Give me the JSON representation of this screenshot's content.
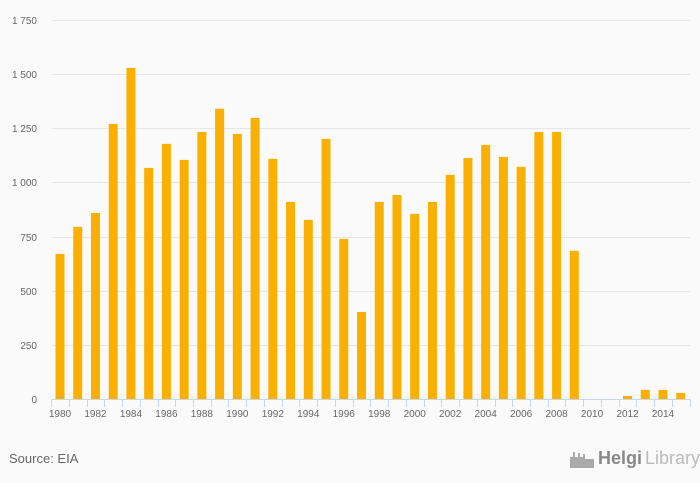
{
  "chart_data": {
    "type": "bar",
    "title": "",
    "xlabel": "",
    "ylabel": "",
    "ylim": [
      0,
      1750
    ],
    "yticks": [
      0,
      250,
      500,
      750,
      1000,
      1250,
      1500,
      1750
    ],
    "ytick_labels": [
      "0",
      "250",
      "500",
      "750",
      "1 000",
      "1 250",
      "1 500",
      "1 750"
    ],
    "categories": [
      "1980",
      "1981",
      "1982",
      "1983",
      "1984",
      "1985",
      "1986",
      "1987",
      "1988",
      "1989",
      "1990",
      "1991",
      "1992",
      "1993",
      "1994",
      "1995",
      "1996",
      "1997",
      "1998",
      "1999",
      "2000",
      "2001",
      "2002",
      "2003",
      "2004",
      "2005",
      "2006",
      "2007",
      "2008",
      "2009",
      "2010",
      "2011",
      "2012",
      "2013",
      "2014",
      "2015"
    ],
    "xtick_labels": [
      "1980",
      "1982",
      "1984",
      "1986",
      "1988",
      "1990",
      "1992",
      "1994",
      "1996",
      "1998",
      "2000",
      "2002",
      "2004",
      "2006",
      "2008",
      "2010",
      "2012",
      "2014"
    ],
    "values": [
      670,
      795,
      859,
      1270,
      1529,
      1067,
      1178,
      1104,
      1233,
      1340,
      1224,
      1298,
      1109,
      910,
      827,
      1201,
      739,
      402,
      910,
      942,
      855,
      910,
      1035,
      1113,
      1173,
      1118,
      1072,
      1233,
      1233,
      684,
      0,
      0,
      14,
      42,
      42,
      28
    ],
    "bar_color": "#f9b000",
    "grid": true,
    "legend": "none"
  },
  "footer": {
    "source": "Source: EIA",
    "logo_bold": "Helgi",
    "logo_light": "Library"
  }
}
